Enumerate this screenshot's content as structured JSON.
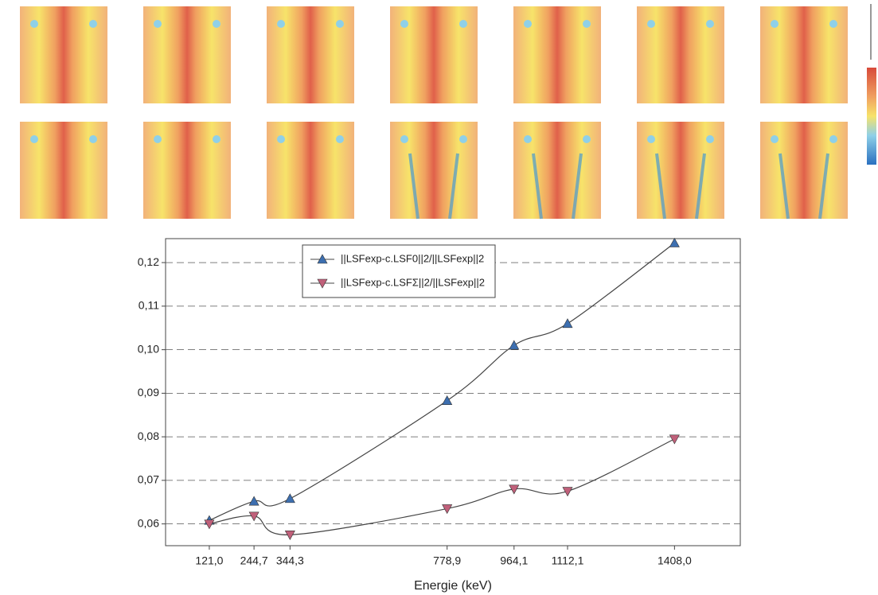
{
  "chart_data": {
    "type": "line",
    "x_label": "Energie (keV)",
    "x": [
      121.0,
      244.7,
      344.3,
      778.9,
      964.1,
      1112.1,
      1408.0
    ],
    "series": [
      {
        "name": "||LSFexp-c.LSF0||2/||LSFexp||2",
        "color": "#3d6fb0",
        "marker": "triangle-up",
        "values": [
          0.0608,
          0.0652,
          0.0658,
          0.0883,
          0.101,
          0.106,
          0.1245
        ]
      },
      {
        "name": "||LSFexp-c.LSFΣ||2/||LSFexp||2",
        "color": "#c0607a",
        "marker": "triangle-down",
        "values": [
          0.06,
          0.0618,
          0.0575,
          0.0635,
          0.068,
          0.0675,
          0.0795
        ]
      }
    ],
    "xlim": [
      0,
      1590
    ],
    "xticks": [
      {
        "value": 121.0,
        "label": "121,0"
      },
      {
        "value": 244.7,
        "label": "244,7"
      },
      {
        "value": 344.3,
        "label": "344,3"
      },
      {
        "value": 778.9,
        "label": "778,9"
      },
      {
        "value": 964.1,
        "label": "964,1"
      },
      {
        "value": 1112.1,
        "label": "1112,1"
      },
      {
        "value": 1408.0,
        "label": "1408,0"
      }
    ],
    "ylim": [
      0.055,
      0.1255
    ],
    "yticks": [
      {
        "value": 0.06,
        "label": "0,06"
      },
      {
        "value": 0.07,
        "label": "0,07"
      },
      {
        "value": 0.08,
        "label": "0,08"
      },
      {
        "value": 0.09,
        "label": "0,09"
      },
      {
        "value": 0.1,
        "label": "0,10"
      },
      {
        "value": 0.11,
        "label": "0,11"
      },
      {
        "value": 0.12,
        "label": "0,12"
      }
    ],
    "grid": true,
    "legend": "top"
  }
}
